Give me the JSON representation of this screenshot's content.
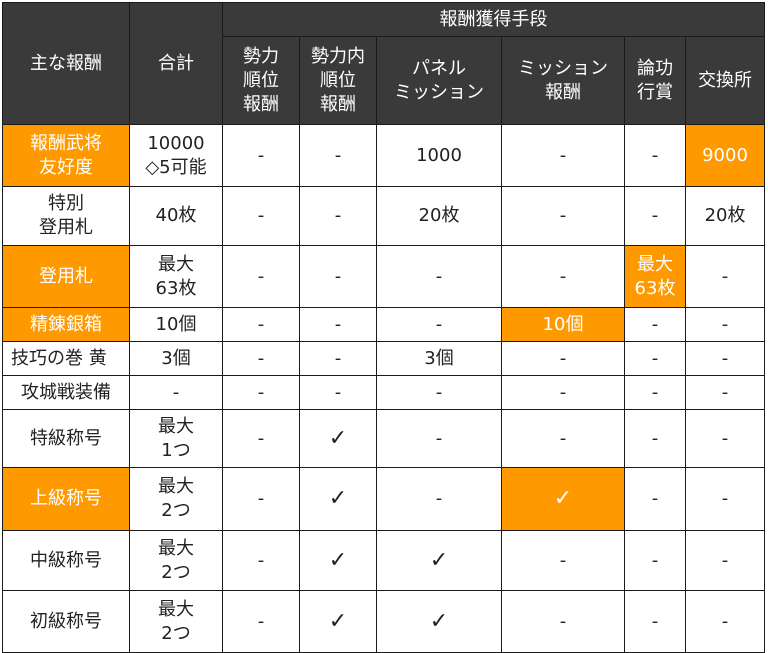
{
  "header": {
    "main_reward": "主な報酬",
    "total": "合計",
    "methods_group": "報酬獲得手段",
    "methods": [
      "勢力\n順位\n報酬",
      "勢力内\n順位\n報酬",
      "パネル\nミッション",
      "ミッション\n報酬",
      "論功\n行賞",
      "交換所"
    ]
  },
  "rows": [
    {
      "name": "報酬武将\n友好度",
      "total": "10000\n◇5可能",
      "cells": [
        "-",
        "-",
        "1000",
        "-",
        "-",
        "9000"
      ],
      "highlight_name": true,
      "highlight_cells": [
        5
      ]
    },
    {
      "name": "特別\n登用札",
      "total": "40枚",
      "cells": [
        "-",
        "-",
        "20枚",
        "-",
        "-",
        "20枚"
      ],
      "highlight_name": false,
      "highlight_cells": []
    },
    {
      "name": "登用札",
      "total": "最大\n63枚",
      "cells": [
        "-",
        "-",
        "-",
        "-",
        "最大\n63枚",
        "-"
      ],
      "highlight_name": true,
      "highlight_cells": [
        4
      ]
    },
    {
      "name": "精錬銀箱",
      "total": "10個",
      "cells": [
        "-",
        "-",
        "-",
        "10個",
        "-",
        "-"
      ],
      "highlight_name": true,
      "highlight_cells": [
        3
      ]
    },
    {
      "name": "技巧の巻 黄",
      "total": "3個",
      "cells": [
        "-",
        "-",
        "3個",
        "-",
        "-",
        "-"
      ],
      "highlight_name": false,
      "highlight_cells": []
    },
    {
      "name": "攻城戦装備",
      "total": "-",
      "cells": [
        "-",
        "-",
        "-",
        "-",
        "-",
        "-"
      ],
      "highlight_name": false,
      "highlight_cells": []
    },
    {
      "name": "特級称号",
      "total": "最大\n1つ",
      "cells": [
        "-",
        "✓",
        "-",
        "-",
        "-",
        "-"
      ],
      "highlight_name": false,
      "highlight_cells": []
    },
    {
      "name": "上級称号",
      "total": "最大\n2つ",
      "cells": [
        "-",
        "✓",
        "-",
        "✓",
        "-",
        "-"
      ],
      "highlight_name": true,
      "highlight_cells": [
        3
      ]
    },
    {
      "name": "中級称号",
      "total": "最大\n2つ",
      "cells": [
        "-",
        "✓",
        "✓",
        "-",
        "-",
        "-"
      ],
      "highlight_name": false,
      "highlight_cells": []
    },
    {
      "name": "初級称号",
      "total": "最大\n2つ",
      "cells": [
        "-",
        "✓",
        "✓",
        "-",
        "-",
        "-"
      ],
      "highlight_name": false,
      "highlight_cells": []
    }
  ],
  "colors": {
    "header_bg": "#3a3a3a",
    "highlight": "#ff9900",
    "text": "#222222"
  }
}
